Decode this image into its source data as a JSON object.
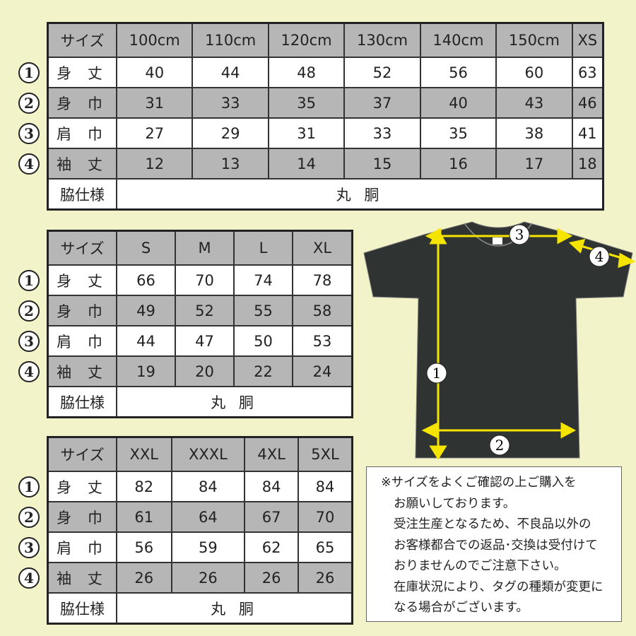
{
  "row_labels": [
    "サイズ",
    "身 丈",
    "身 巾",
    "肩 巾",
    "袖 丈",
    "脇仕様"
  ],
  "row_numbers": [
    "1",
    "2",
    "3",
    "4"
  ],
  "tables": [
    {
      "sizes": [
        "100cm",
        "110cm",
        "120cm",
        "130cm",
        "140cm",
        "150cm",
        "XS"
      ],
      "rows": [
        [
          40,
          44,
          48,
          52,
          56,
          60,
          63
        ],
        [
          31,
          33,
          35,
          37,
          40,
          43,
          46
        ],
        [
          27,
          29,
          31,
          33,
          35,
          38,
          41
        ],
        [
          12,
          13,
          14,
          15,
          16,
          17,
          18
        ]
      ],
      "side": "丸 胴"
    },
    {
      "sizes": [
        "S",
        "M",
        "L",
        "XL"
      ],
      "rows": [
        [
          66,
          70,
          74,
          78
        ],
        [
          49,
          52,
          55,
          58
        ],
        [
          44,
          47,
          50,
          53
        ],
        [
          19,
          20,
          22,
          24
        ]
      ],
      "side": "丸 胴"
    },
    {
      "sizes": [
        "XXL",
        "XXXL",
        "4XL",
        "5XL"
      ],
      "rows": [
        [
          82,
          84,
          84,
          84
        ],
        [
          61,
          64,
          67,
          70
        ],
        [
          56,
          59,
          62,
          65
        ],
        [
          26,
          26,
          26,
          26
        ]
      ],
      "side": "丸 胴"
    }
  ],
  "diagram": {
    "labels": [
      "1",
      "2",
      "3",
      "4"
    ],
    "shirt_color": "#2f3331",
    "arrow_color": "#f5e400"
  },
  "note": [
    "※サイズをよくご確認の上ご購入を",
    "お願いしております。",
    "受注生産となるため、不良品以外の",
    "お客様都合での返品･交換は受付けて",
    "おりませんのでご注意下さい。",
    "在庫状況により、タグの種類が変更に",
    "なる場合がございます。"
  ],
  "colors": {
    "background": "#f3f3c9",
    "shaded_row": "#b6b6b6"
  }
}
